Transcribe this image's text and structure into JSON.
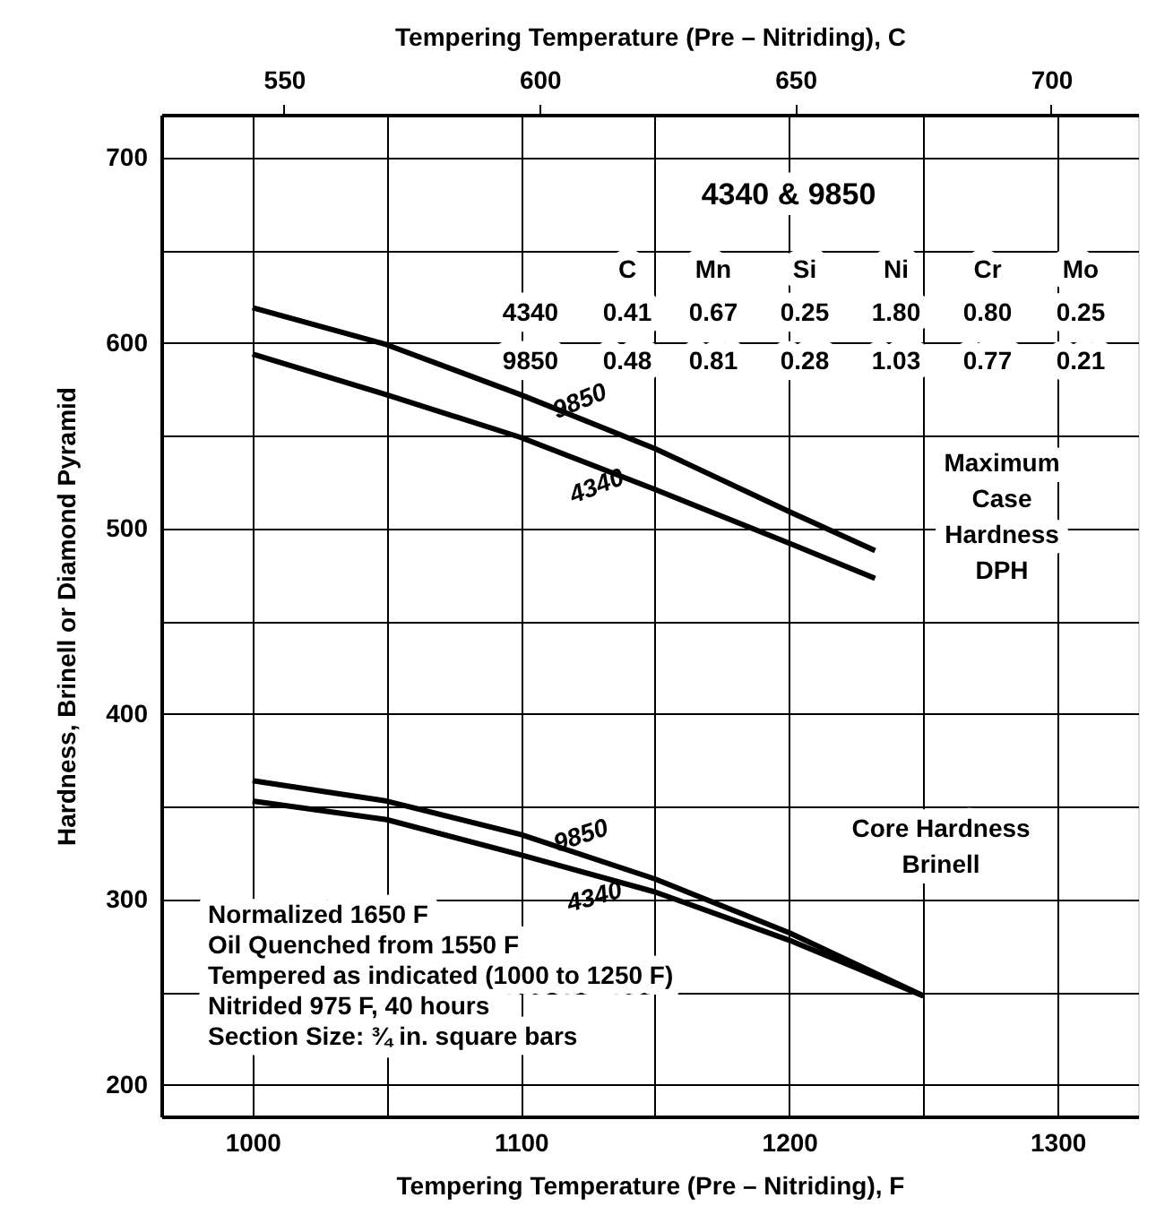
{
  "chart_data": {
    "type": "line",
    "xlabel": "Tempering Temperature (Pre – Nitriding), F",
    "x2label": "Tempering Temperature (Pre – Nitriding), C",
    "ylabel": "Hardness, Brinell or Diamond Pyramid",
    "xlim": [
      966,
      1330
    ],
    "xticks": [
      1000,
      {
        "value": 1050,
        "label": null
      },
      1100,
      {
        "value": 1150,
        "label": null
      },
      1200,
      {
        "value": 1250,
        "label": null
      },
      1300
    ],
    "x2lim": [
      526,
      717
    ],
    "x2ticks": [
      550,
      600,
      650,
      700
    ],
    "ylim": [
      183,
      723
    ],
    "yticks": [
      200,
      {
        "value": 250,
        "label": null
      },
      300,
      {
        "value": 350,
        "label": null
      },
      400,
      {
        "value": 450,
        "label": null
      },
      500,
      {
        "value": 550,
        "label": null
      },
      600,
      {
        "value": 650,
        "label": null
      },
      700
    ],
    "grid": true,
    "marker": "none",
    "line_style": "solid",
    "x": [
      1000,
      1050,
      1100,
      1150,
      1200,
      1232
    ],
    "series": [
      {
        "name": "9850",
        "color": "#000000",
        "values": [
          619,
          599,
          572,
          543,
          509,
          488
        ]
      },
      {
        "name": "4340",
        "color": "#000000",
        "values": [
          594,
          572,
          549,
          521,
          492,
          473
        ]
      },
      {
        "name": "9850",
        "color": "#000000",
        "x": [
          1000,
          1050,
          1100,
          1150,
          1200,
          1250
        ],
        "values": [
          364,
          353,
          335,
          311,
          282,
          248
        ]
      },
      {
        "name": "4340",
        "color": "#000000",
        "x": [
          1000,
          1050,
          1100,
          1150,
          1200,
          1250
        ],
        "values": [
          353,
          343,
          324,
          304,
          278,
          248
        ]
      }
    ],
    "annotations": [
      "4340 & 9850",
      "C",
      "Mn",
      "Si",
      "Ni",
      "Cr",
      "Mo",
      "4340",
      "0.41",
      "0.67",
      "0.25",
      "1.80",
      "0.80",
      "0.25",
      "9850",
      "0.48",
      "0.81",
      "0.28",
      "1.03",
      "0.77",
      "0.21",
      "Maximum\nCase\nHardness\nDPH",
      "Core Hardness\nBrinell",
      "Normalized 1650 F\nOil Quenched from 1550 F\nTempered as indicated (1000 to 1250 F)\nNitrided 975 F, 40 hours\nSection Size: ¾ in. square bars"
    ]
  }
}
